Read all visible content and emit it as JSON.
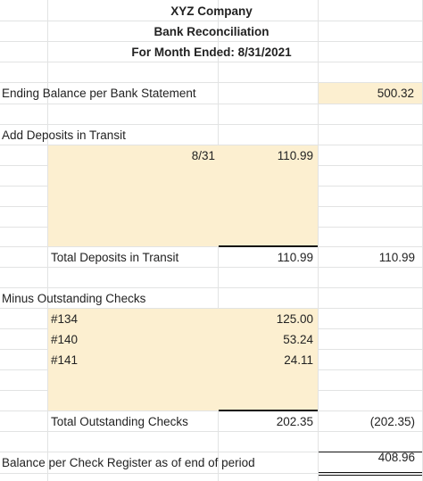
{
  "header": {
    "company": "XYZ Company",
    "title": "Bank Reconciliation",
    "period": "For Month Ended: 8/31/2021"
  },
  "ending_balance": {
    "label": "Ending Balance per Bank Statement",
    "value": "500.32"
  },
  "deposits": {
    "section_label": "Add Deposits in Transit",
    "rows": [
      {
        "date": "8/31",
        "amount": "110.99"
      }
    ],
    "total_label": "Total Deposits in Transit",
    "total_subtotal": "110.99",
    "total_value": "110.99"
  },
  "checks": {
    "section_label": "Minus Outstanding Checks",
    "rows": [
      {
        "number": "#134",
        "amount": "125.00"
      },
      {
        "number": "#140",
        "amount": "53.24"
      },
      {
        "number": "#141",
        "amount": "24.11"
      }
    ],
    "total_label": "Total Outstanding Checks",
    "total_subtotal": "202.35",
    "total_value": "(202.35)"
  },
  "final": {
    "label": "Balance per Check Register as of end of period",
    "value": "408.96"
  },
  "colors": {
    "highlight": "#fcefd0",
    "grid": "#e2e3e3"
  }
}
